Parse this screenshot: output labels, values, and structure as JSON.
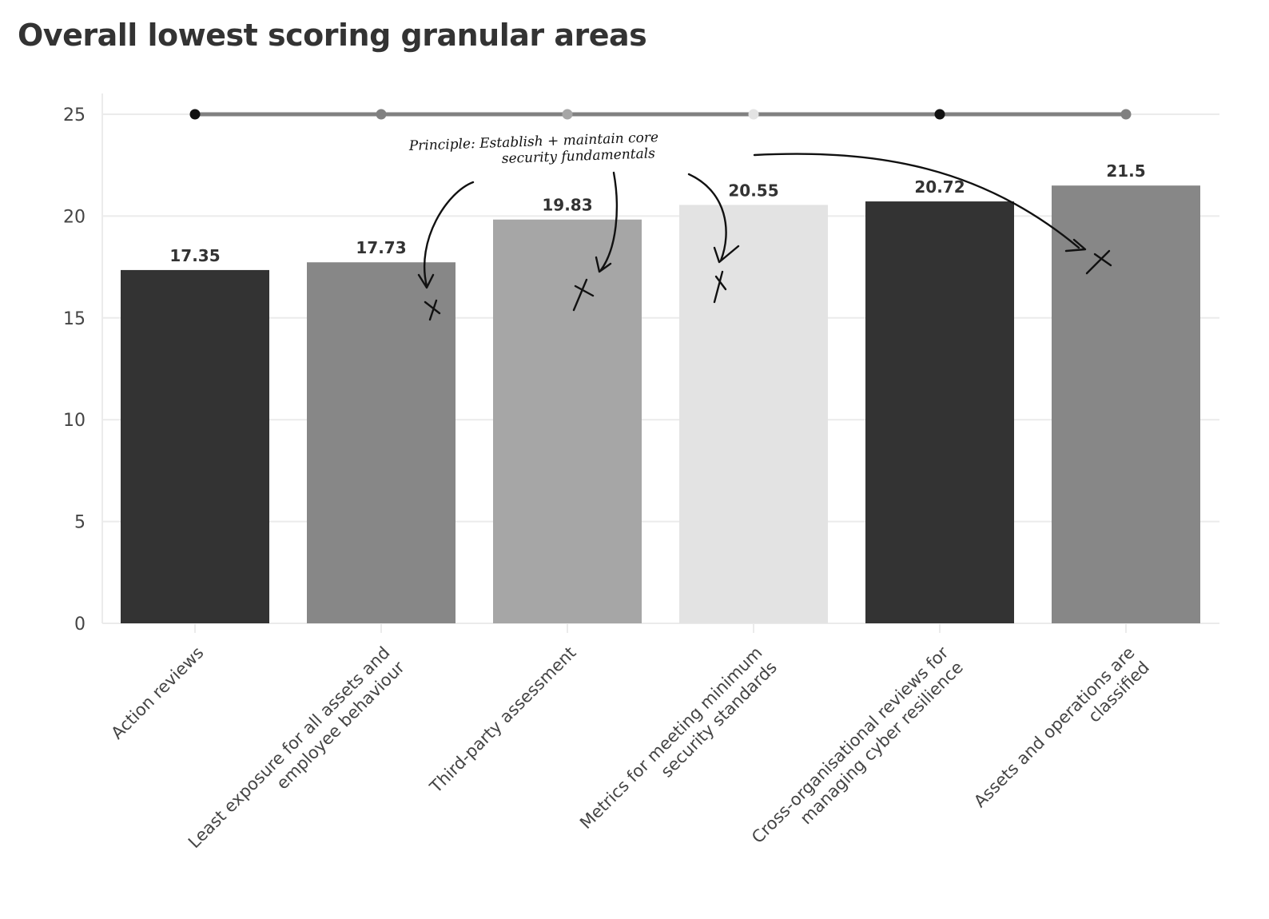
{
  "title": "Overall lowest scoring granular areas",
  "annotation": {
    "line1": "Principle: Establish + maintain core",
    "line2": "security fundamentals",
    "marker": "X"
  },
  "colors": {
    "bar_dark": "#333333",
    "bar_mid": "#878787",
    "bar_light": "#a6a6a6",
    "bar_lighter": "#e3e3e3",
    "grid": "#ebebeb",
    "timeline": "#808080",
    "ink": "#111111"
  },
  "chart_data": {
    "type": "bar",
    "title": "Overall lowest scoring granular areas",
    "categories": [
      "Action reviews",
      "Least exposure for all assets and employee behaviour",
      "Third-party assessment",
      "Metrics for meeting minimum security standards",
      "Cross-organisational reviews for managing cyber resilience",
      "Assets and operations are classified"
    ],
    "category_lines": [
      [
        "Action reviews"
      ],
      [
        "Least exposure for all assets and",
        "employee behaviour"
      ],
      [
        "Third-party assessment"
      ],
      [
        "Metrics for meeting minimum",
        "security standards"
      ],
      [
        "Cross-organisational reviews for",
        "managing cyber resilience"
      ],
      [
        "Assets and operations are",
        "classified"
      ]
    ],
    "values": [
      17.35,
      17.73,
      19.83,
      20.55,
      20.72,
      21.5
    ],
    "value_labels": [
      "17.35",
      "17.73",
      "19.83",
      "20.55",
      "20.72",
      "21.5"
    ],
    "bar_colors": [
      "#333333",
      "#878787",
      "#a6a6a6",
      "#e3e3e3",
      "#333333",
      "#878787"
    ],
    "marker_line": {
      "y": 25,
      "dot_colors": [
        "#111111",
        "#808080",
        "#a6a6a6",
        "#e3e3e3",
        "#111111",
        "#808080"
      ]
    },
    "annotated_indices": [
      1,
      2,
      3,
      5
    ],
    "yticks": [
      0,
      5,
      10,
      15,
      20,
      25
    ],
    "ylim": [
      0,
      26
    ],
    "xlabel": "",
    "ylabel": "",
    "grid": true,
    "legend": "none"
  }
}
